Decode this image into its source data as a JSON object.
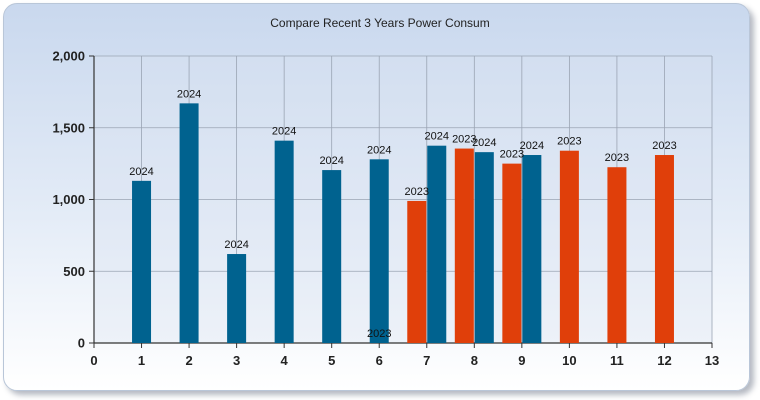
{
  "chart_data": {
    "type": "bar",
    "title": "Compare Recent 3 Years Power Consum",
    "xlabel": "",
    "ylabel": "",
    "xlim": [
      0,
      13
    ],
    "ylim": [
      0,
      2000
    ],
    "x_ticks": [
      "0",
      "1",
      "2",
      "3",
      "4",
      "5",
      "6",
      "7",
      "8",
      "9",
      "10",
      "11",
      "12",
      "13"
    ],
    "y_ticks": [
      "0",
      "500",
      "1,000",
      "1,500",
      "2,000"
    ],
    "y_tick_values": [
      0,
      500,
      1000,
      1500,
      2000
    ],
    "grid": true,
    "series": [
      {
        "name": "2024",
        "color": "#00628f",
        "points": [
          {
            "x": 1,
            "y": 1130
          },
          {
            "x": 2,
            "y": 1670
          },
          {
            "x": 3,
            "y": 620
          },
          {
            "x": 4,
            "y": 1410
          },
          {
            "x": 5,
            "y": 1205
          },
          {
            "x": 6,
            "y": 1280
          },
          {
            "x": 7,
            "y": 1375
          },
          {
            "x": 8,
            "y": 1330
          },
          {
            "x": 9,
            "y": 1310
          }
        ]
      },
      {
        "name": "2023",
        "color": "#e03f0a",
        "points": [
          {
            "x": 6,
            "y": 0
          },
          {
            "x": 7,
            "y": 990
          },
          {
            "x": 8,
            "y": 1355
          },
          {
            "x": 9,
            "y": 1250
          },
          {
            "x": 10,
            "y": 1340
          },
          {
            "x": 11,
            "y": 1225
          },
          {
            "x": 12,
            "y": 1310
          }
        ]
      }
    ]
  }
}
